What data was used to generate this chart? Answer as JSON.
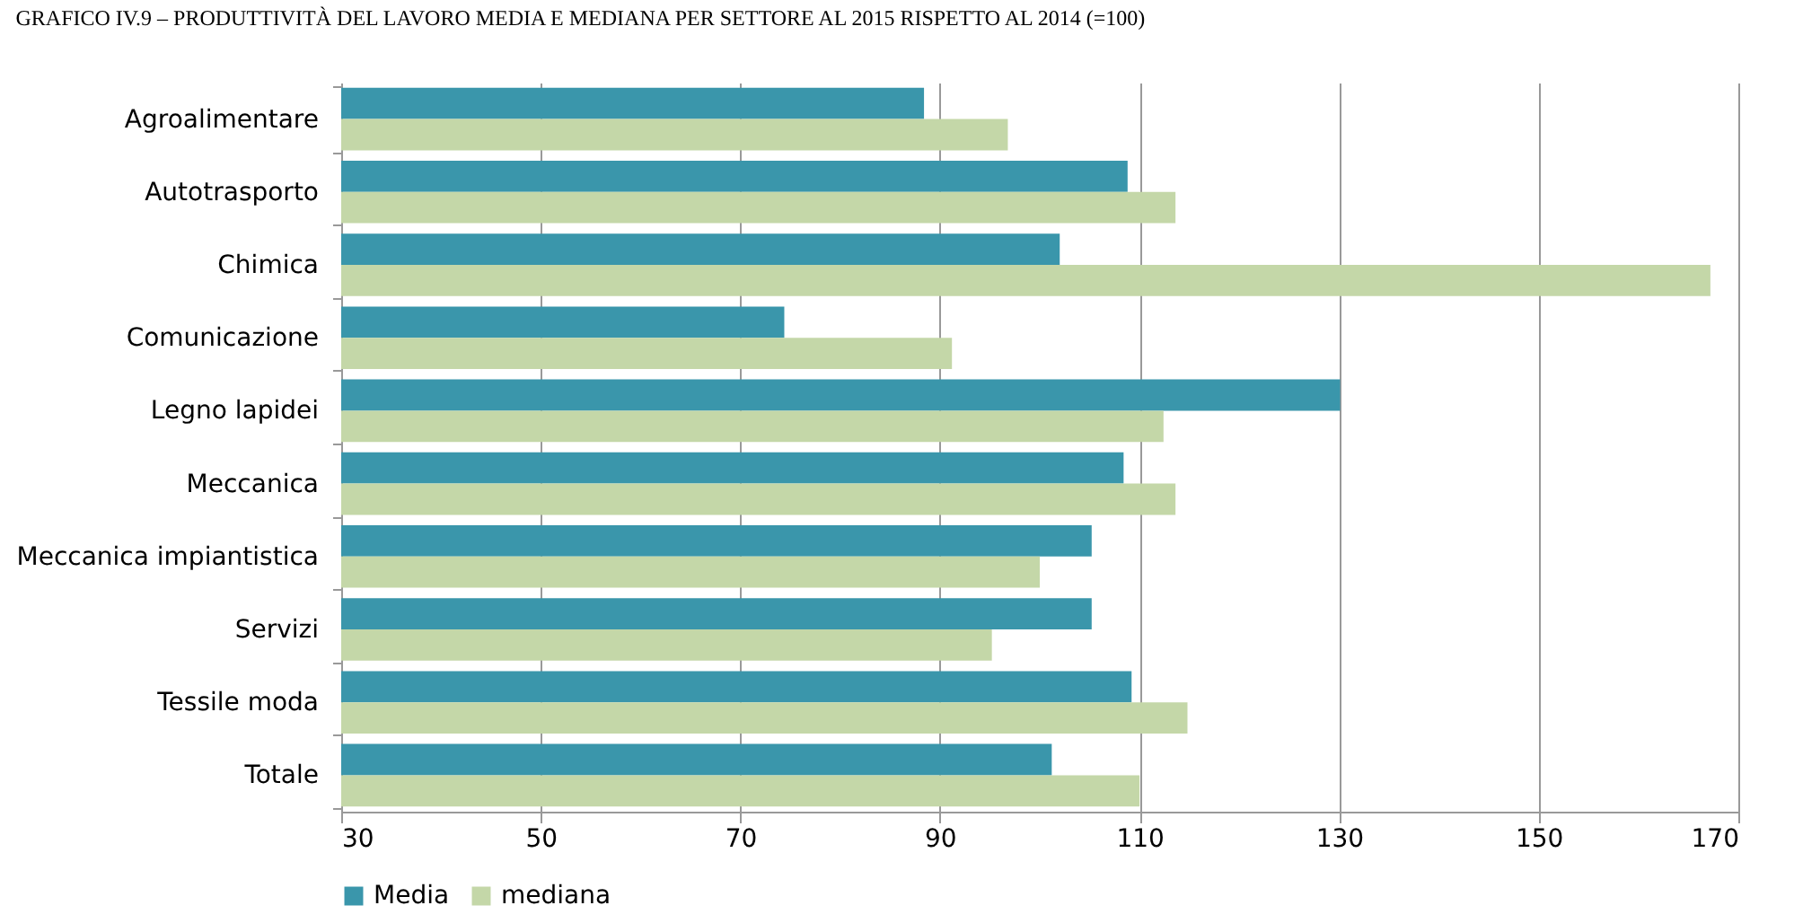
{
  "chart_data": {
    "type": "bar",
    "orientation": "horizontal",
    "title": "GRAFICO IV.9 – PRODUTTIVITÀ DEL LAVORO MEDIA E MEDIANA PER SETTORE AL 2015 RISPETTO AL 2014 (=100)",
    "categories": [
      "Agroalimentare",
      "Autotrasporto",
      "Chimica",
      "Comunicazione",
      "Legno lapidei",
      "Meccanica",
      "Meccanica impiantistica",
      "Servizi",
      "Tessile moda",
      "Totale"
    ],
    "series": [
      {
        "name": "Media",
        "color": "#3a96ab",
        "values": [
          88.4,
          108.8,
          102.0,
          74.4,
          130.1,
          108.4,
          105.2,
          105.2,
          109.2,
          101.2
        ]
      },
      {
        "name": "mediana",
        "color": "#c4d7a8",
        "values": [
          96.8,
          113.6,
          167.2,
          91.2,
          112.4,
          113.6,
          100.0,
          95.2,
          114.8,
          110.0
        ]
      }
    ],
    "xlim": [
      30,
      170
    ],
    "xticks": [
      30,
      50,
      70,
      90,
      110,
      130,
      150,
      170
    ],
    "grid": "x",
    "legend": "bottom"
  }
}
